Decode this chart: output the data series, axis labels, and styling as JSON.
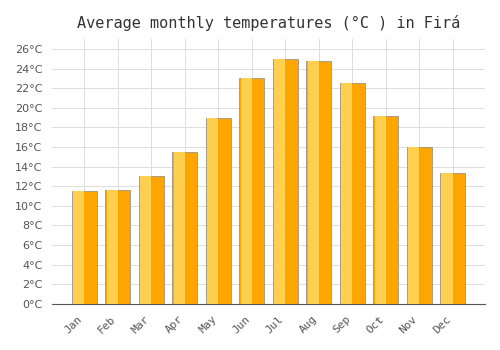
{
  "title": "Average monthly temperatures (°C ) in Firá",
  "months": [
    "Jan",
    "Feb",
    "Mar",
    "Apr",
    "May",
    "Jun",
    "Jul",
    "Aug",
    "Sep",
    "Oct",
    "Nov",
    "Dec"
  ],
  "values": [
    11.5,
    11.6,
    13.0,
    15.5,
    19.0,
    23.0,
    25.0,
    24.8,
    22.5,
    19.2,
    16.0,
    13.3
  ],
  "bar_color": "#FFA500",
  "bar_edge_color": "#888888",
  "background_color": "#FFFFFF",
  "grid_color": "#DDDDDD",
  "ylim": [
    0,
    27
  ],
  "yticks": [
    0,
    2,
    4,
    6,
    8,
    10,
    12,
    14,
    16,
    18,
    20,
    22,
    24,
    26
  ],
  "title_fontsize": 11,
  "tick_fontsize": 8,
  "font_family": "monospace"
}
